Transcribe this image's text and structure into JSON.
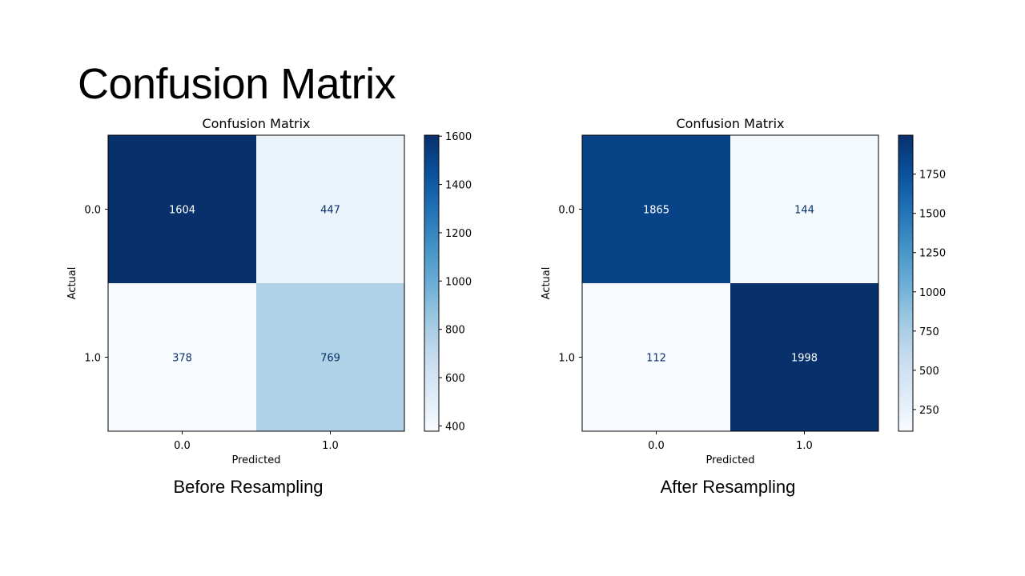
{
  "slide": {
    "title": "Confusion Matrix",
    "captions": [
      "Before Resampling",
      "After Resampling"
    ]
  },
  "chart_data": [
    {
      "type": "heatmap",
      "title": "Confusion Matrix",
      "xlabel": "Predicted",
      "ylabel": "Actual",
      "x_categories": [
        "0.0",
        "1.0"
      ],
      "y_categories": [
        "0.0",
        "1.0"
      ],
      "values": [
        [
          1604,
          447
        ],
        [
          378,
          769
        ]
      ],
      "colormap": "Blues",
      "colorbar": {
        "min": 378,
        "max": 1604,
        "ticks": [
          400,
          600,
          800,
          1000,
          1200,
          1400,
          1600
        ]
      },
      "colors": {
        "low": "#f7fbff",
        "high": "#08306b",
        "text_light": "#ffffff",
        "text_dark": "#08306b"
      }
    },
    {
      "type": "heatmap",
      "title": "Confusion Matrix",
      "xlabel": "Predicted",
      "ylabel": "Actual",
      "x_categories": [
        "0.0",
        "1.0"
      ],
      "y_categories": [
        "0.0",
        "1.0"
      ],
      "values": [
        [
          1865,
          144
        ],
        [
          112,
          1998
        ]
      ],
      "colormap": "Blues",
      "colorbar": {
        "min": 112,
        "max": 1998,
        "ticks": [
          250,
          500,
          750,
          1000,
          1250,
          1500,
          1750
        ]
      },
      "colors": {
        "low": "#f7fbff",
        "high": "#08306b",
        "text_light": "#ffffff",
        "text_dark": "#08306b"
      }
    }
  ]
}
